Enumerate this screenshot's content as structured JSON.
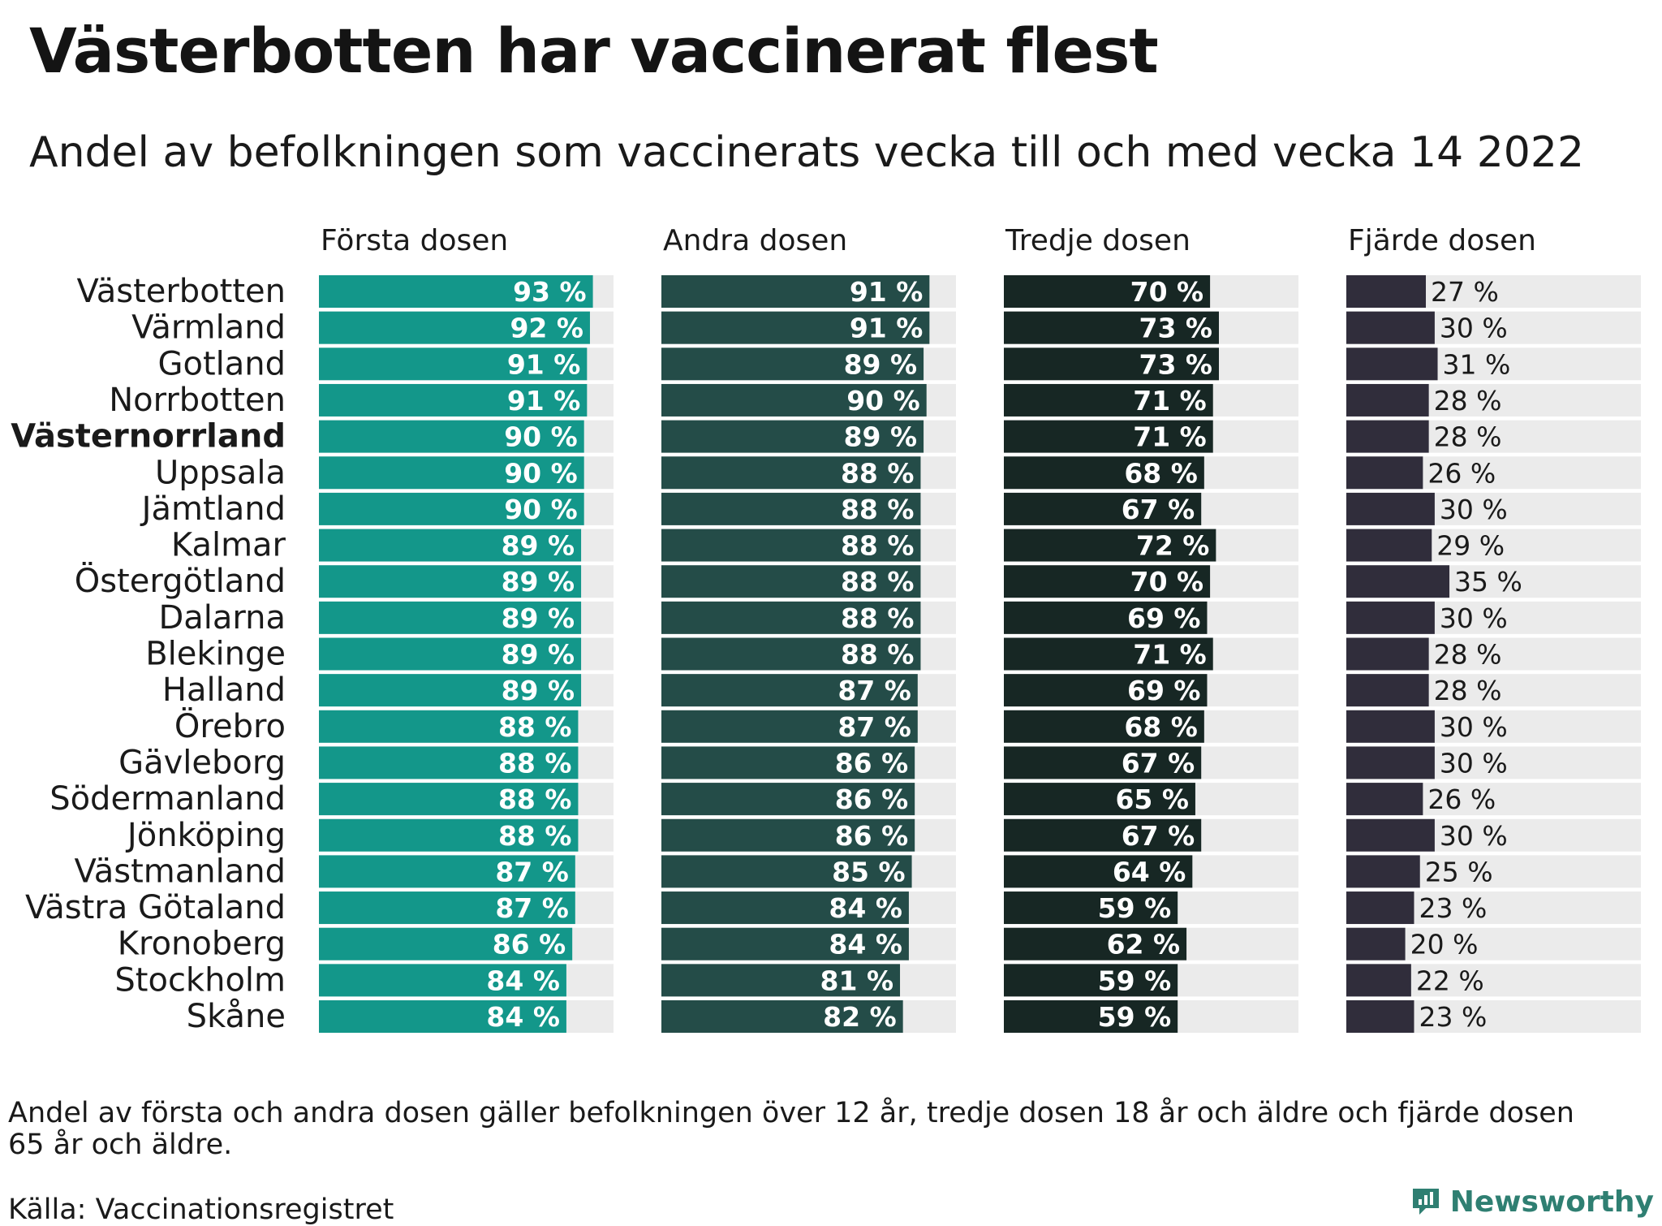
{
  "title": "Västerbotten har vaccinerat flest",
  "subtitle": "Andel av befolkningen som vaccinerats vecka till och med vecka 14 2022",
  "footnote": "Andel av första och andra dosen gäller befolkningen över 12 år, tredje dosen 18 år och äldre och fjärde dosen 65 år och äldre.",
  "source": "Källa: Vaccinationsregistret",
  "brand": "Newsworthy",
  "colors": {
    "track": "#ebebeb",
    "dose1": "#13978a",
    "dose2": "#244c48",
    "dose3": "#172724",
    "dose4": "#302d3b",
    "label_inside": "#ffffff",
    "label_outside": "#1a1a1a",
    "brand": "#2f7f72"
  },
  "chart_data": {
    "type": "bar",
    "orientation": "horizontal",
    "layout": "small-multiples",
    "highlight": "Västernorrland",
    "value_suffix": " %",
    "xlim": [
      0,
      100
    ],
    "categories": [
      "Västerbotten",
      "Värmland",
      "Gotland",
      "Norrbotten",
      "Västernorrland",
      "Uppsala",
      "Jämtland",
      "Kalmar",
      "Östergötland",
      "Dalarna",
      "Blekinge",
      "Halland",
      "Örebro",
      "Gävleborg",
      "Södermanland",
      "Jönköping",
      "Västmanland",
      "Västra Götaland",
      "Kronoberg",
      "Stockholm",
      "Skåne"
    ],
    "series": [
      {
        "name": "Första dosen",
        "color_key": "dose1",
        "values": [
          93,
          92,
          91,
          91,
          90,
          90,
          90,
          89,
          89,
          89,
          89,
          89,
          88,
          88,
          88,
          88,
          87,
          87,
          86,
          84,
          84
        ]
      },
      {
        "name": "Andra dosen",
        "color_key": "dose2",
        "values": [
          91,
          91,
          89,
          90,
          89,
          88,
          88,
          88,
          88,
          88,
          88,
          87,
          87,
          86,
          86,
          86,
          85,
          84,
          84,
          81,
          82
        ]
      },
      {
        "name": "Tredje dosen",
        "color_key": "dose3",
        "values": [
          70,
          73,
          73,
          71,
          71,
          68,
          67,
          72,
          70,
          69,
          71,
          69,
          68,
          67,
          65,
          67,
          64,
          59,
          62,
          59,
          59
        ]
      },
      {
        "name": "Fjärde dosen",
        "color_key": "dose4",
        "labels_outside": true,
        "values": [
          27,
          30,
          31,
          28,
          28,
          26,
          30,
          29,
          35,
          30,
          28,
          28,
          30,
          30,
          26,
          30,
          25,
          23,
          20,
          22,
          23
        ]
      }
    ]
  }
}
